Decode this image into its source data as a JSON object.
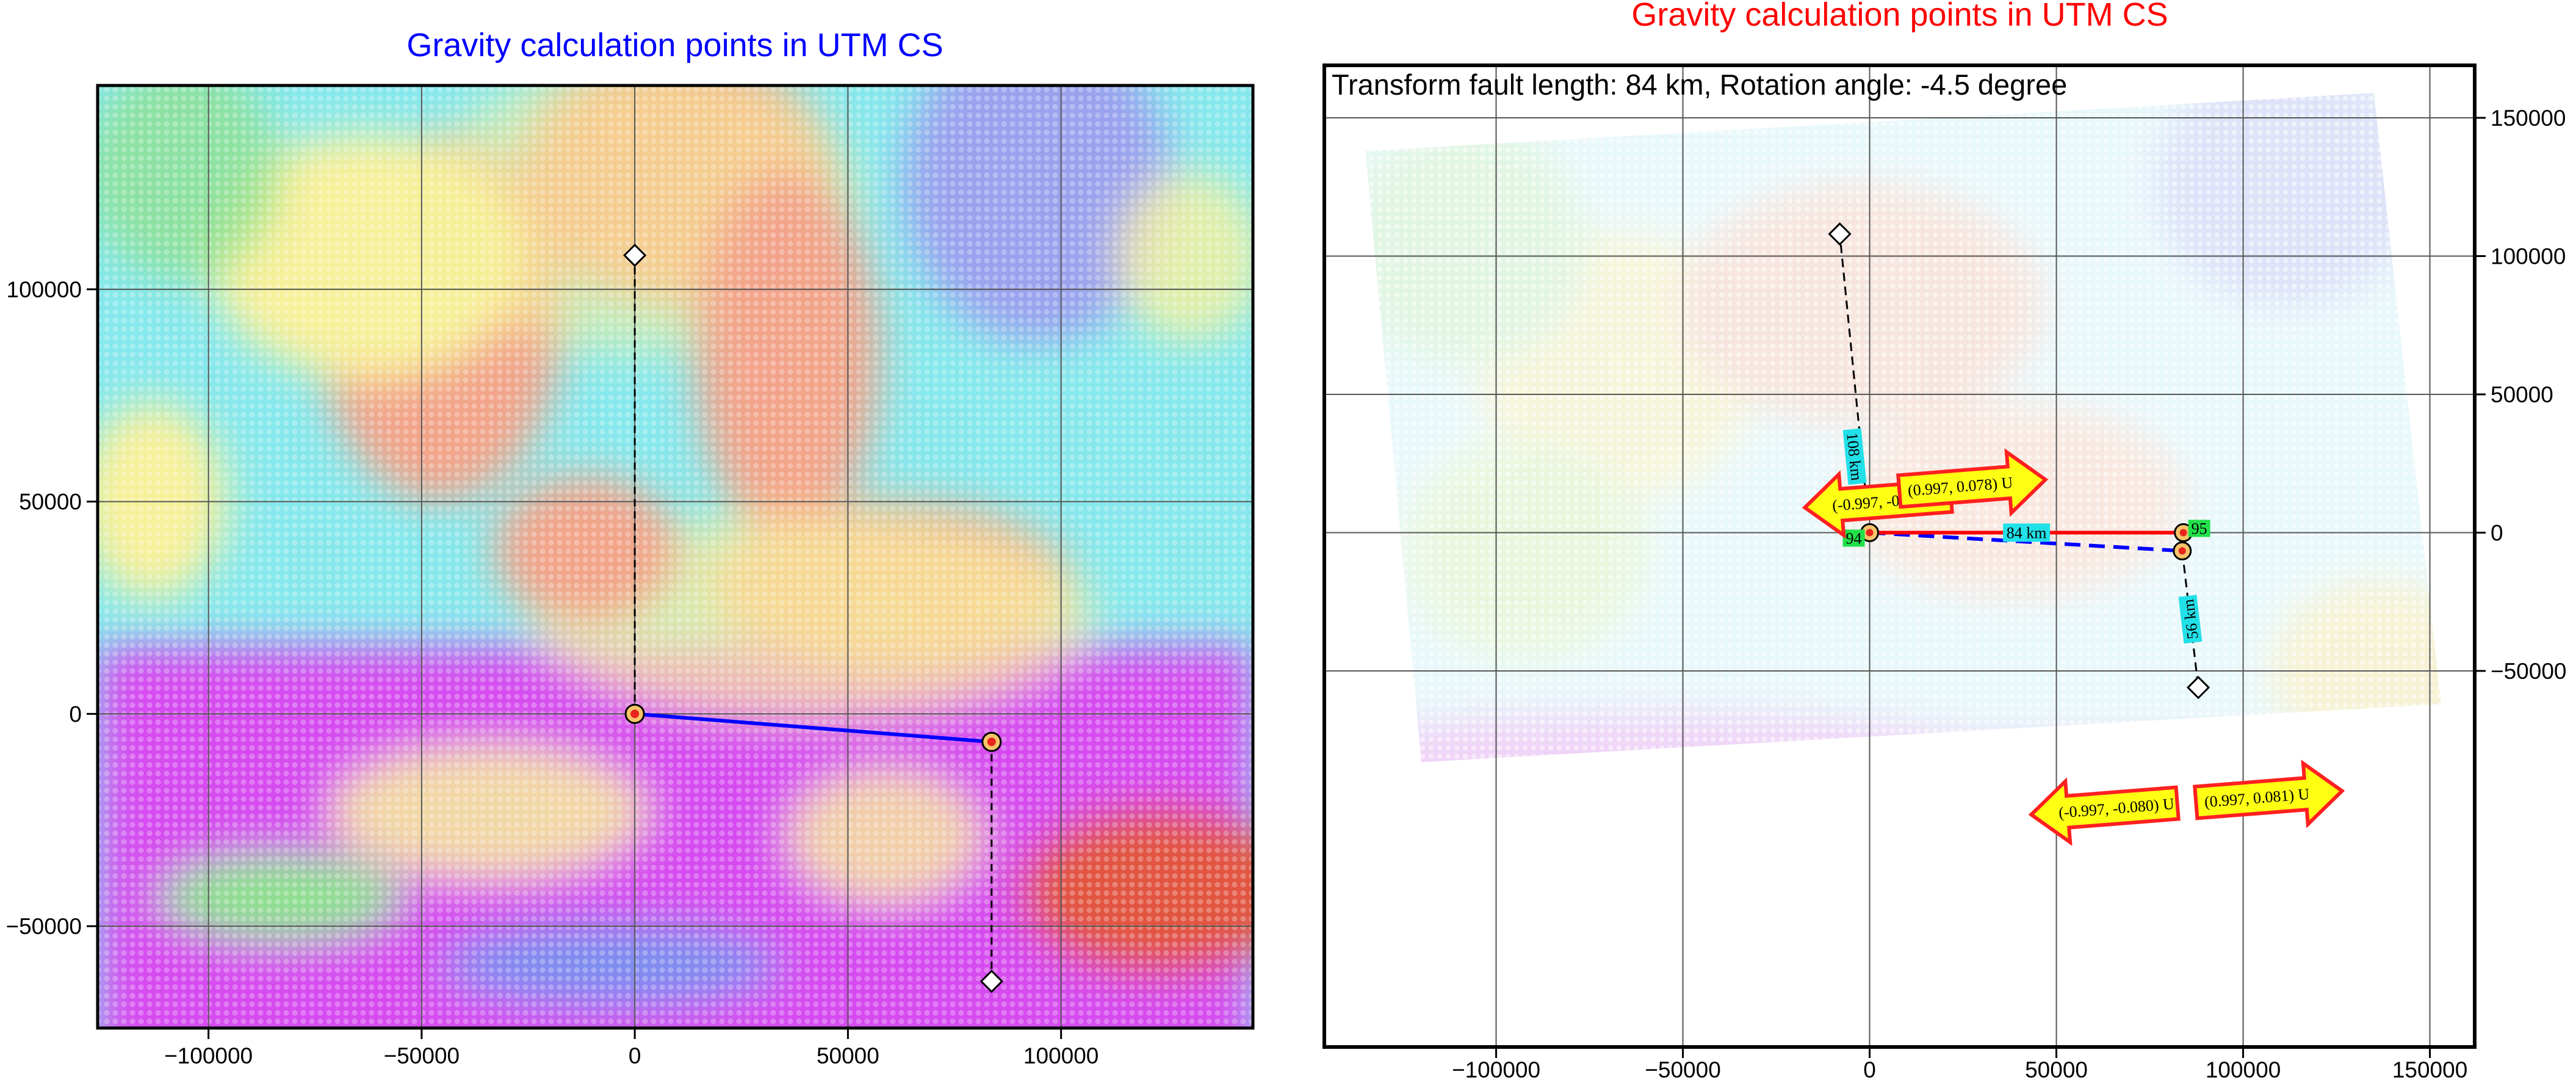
{
  "chart_data": [
    {
      "type": "scatter",
      "title": "Gravity calculation points in UTM CS",
      "title_color": "#0000ff",
      "xlim": [
        -126000,
        145000
      ],
      "ylim": [
        -74000,
        148000
      ],
      "x_ticks": [
        -100000,
        -50000,
        0,
        50000,
        100000
      ],
      "x_tick_labels": [
        "−100000",
        "−50000",
        "0",
        "50000",
        "100000"
      ],
      "y_ticks": [
        -50000,
        0,
        50000,
        100000
      ],
      "y_tick_labels": [
        "−50000",
        "0",
        "50000",
        "100000"
      ],
      "y_axis_side": "left",
      "grid": true,
      "background": "dense colored grid of gravity calculation points (magenta, blue, cyan, green, yellow, orange, red)",
      "fault_trace": {
        "from": [
          0,
          0
        ],
        "to": [
          83700,
          -6600
        ],
        "color": "#0000ff"
      },
      "fault_ends": [
        [
          0,
          0
        ],
        [
          83700,
          -6600
        ]
      ],
      "profile_lines": [
        {
          "from": [
            0,
            0
          ],
          "to": [
            0,
            108000
          ]
        },
        {
          "from": [
            83700,
            -6600
          ],
          "to": [
            83700,
            -63000
          ]
        }
      ],
      "diamond_markers": [
        [
          0,
          108000
        ],
        [
          83700,
          -63000
        ]
      ]
    },
    {
      "type": "scatter",
      "title": "Gravity calculation points in UTM CS",
      "title_color": "#ff0000",
      "subtitle": "Transform fault length: 84 km,  Rotation angle: -4.5 degree",
      "xlim": [
        -146000,
        162000
      ],
      "ylim": [
        -186000,
        169000
      ],
      "x_ticks": [
        -100000,
        -50000,
        0,
        50000,
        100000,
        150000
      ],
      "x_tick_labels": [
        "−100000",
        "−50000",
        "0",
        "50000",
        "100000",
        "150000"
      ],
      "y_ticks": [
        -50000,
        0,
        50000,
        100000,
        150000
      ],
      "y_tick_labels": [
        "−50000",
        "0",
        "50000",
        "100000",
        "150000"
      ],
      "y_axis_side": "right",
      "grid": true,
      "background": "faded rotated grid of gravity calculation points",
      "rotated_grid_corners": [
        [
          -135000,
          138000
        ],
        [
          135000,
          159000
        ],
        [
          153000,
          -62000
        ],
        [
          -120000,
          -83000
        ]
      ],
      "fault_red": {
        "from": [
          0,
          0
        ],
        "to": [
          84000,
          0
        ],
        "color": "#ff0000"
      },
      "fault_blue_dashed": {
        "from": [
          0,
          0
        ],
        "to": [
          83700,
          -6600
        ],
        "color": "#0000ff"
      },
      "fault_length_label": "84 km",
      "fault_end_labels": [
        {
          "text": "94",
          "at": [
            0,
            0
          ]
        },
        {
          "text": "95",
          "at": [
            84000,
            0
          ]
        }
      ],
      "profile_lines": [
        {
          "from": [
            0,
            0
          ],
          "to": [
            -8000,
            108000
          ],
          "label": "108 km"
        },
        {
          "from": [
            83700,
            -6600
          ],
          "to": [
            88000,
            -56000
          ],
          "label": "56 km"
        }
      ],
      "diamond_markers": [
        [
          -8000,
          108000
        ],
        [
          88000,
          -56000
        ]
      ],
      "direction_arrows": [
        {
          "text": "(-0.997, -0.078) U",
          "dir": "left"
        },
        {
          "text": "(0.997, 0.078) U",
          "dir": "right"
        },
        {
          "text": "(-0.997, -0.080) U",
          "dir": "left"
        },
        {
          "text": "(0.997, 0.081) U",
          "dir": "right"
        }
      ]
    }
  ]
}
